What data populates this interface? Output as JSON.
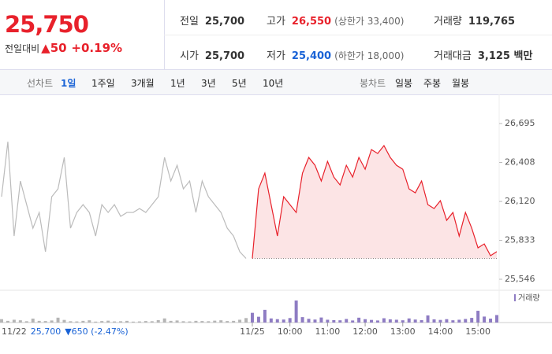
{
  "header": {
    "price": "25,750",
    "change_label": "전일대비",
    "change": "▲50",
    "change_pct": "+0.19%",
    "stats": [
      {
        "label": "전일",
        "value": "25,700"
      },
      {
        "label": "고가",
        "value": "26,550",
        "note": "(상한가 33,400)"
      },
      {
        "label": "거래량",
        "value": "119,765"
      },
      {
        "label": "시가",
        "value": "25,700"
      },
      {
        "label": "저가",
        "value": "25,400",
        "note": "(하한가 18,000)"
      },
      {
        "label": "거래대금",
        "value": "3,125 백만"
      }
    ]
  },
  "tabs": {
    "line_label": "선차트",
    "line": [
      "1일",
      "1주일",
      "3개월",
      "1년",
      "3년",
      "5년",
      "10년"
    ],
    "candle_label": "봉차트",
    "candle": [
      "일봉",
      "주봉",
      "월봉"
    ]
  },
  "prev_info": {
    "date": "11/22",
    "price": "25,700",
    "change": "▼650 (-2.47%)"
  },
  "chart_data": {
    "type": "line",
    "x": [
      0,
      1,
      2,
      3,
      4,
      5,
      6,
      7,
      8,
      9,
      10,
      11,
      12,
      13,
      14,
      15,
      16,
      17,
      18,
      19,
      20,
      21,
      22,
      23,
      24,
      25,
      26,
      27,
      28,
      29,
      30,
      31,
      32,
      33,
      34,
      35,
      36,
      37,
      38,
      39,
      40,
      41,
      42,
      43,
      44,
      45,
      46,
      47,
      48,
      49,
      50,
      51,
      52,
      53,
      54,
      55,
      56,
      57,
      58,
      59,
      60,
      61,
      62,
      63,
      64,
      65,
      66,
      67,
      68,
      69,
      70,
      71,
      72,
      73,
      74,
      75,
      76,
      77,
      78,
      79
    ],
    "xlim": [
      0,
      79
    ],
    "xticks": [
      {
        "value": 40,
        "label": "11/25"
      },
      {
        "value": 46,
        "label": "10:00"
      },
      {
        "value": 52,
        "label": "11:00"
      },
      {
        "value": 58,
        "label": "12:00"
      },
      {
        "value": 64,
        "label": "13:00"
      },
      {
        "value": 70,
        "label": "14:00"
      },
      {
        "value": 76,
        "label": "15:00"
      }
    ],
    "ylim": [
      25488,
      26881
    ],
    "yticks": [
      {
        "value": 25546,
        "label": "25,546"
      },
      {
        "value": 25833,
        "label": "25,833"
      },
      {
        "value": 26120,
        "label": "26,120"
      },
      {
        "value": 26408,
        "label": "26,408"
      },
      {
        "value": 26695,
        "label": "26,695"
      }
    ],
    "reference_line": 25700,
    "series": [
      {
        "color": "#bbbbbb",
        "values": [
          26155,
          26561,
          25865,
          26271,
          26097,
          25923,
          26039,
          25749,
          26155,
          26213,
          26445,
          25923,
          26039,
          26097,
          26039,
          25865,
          26097,
          26039,
          26097,
          26010,
          26039,
          26039,
          26068,
          26039,
          26097,
          26155,
          26445,
          26271,
          26387,
          26213,
          26271,
          26039,
          26271,
          26155,
          26097,
          26039,
          25923,
          25865,
          25749,
          25700,
          null,
          null,
          null,
          null,
          null,
          null,
          null,
          null,
          null,
          null,
          null,
          null,
          null,
          null,
          null,
          null,
          null,
          null,
          null,
          null,
          null,
          null,
          null,
          null,
          null,
          null,
          null,
          null,
          null,
          null,
          null,
          null,
          null,
          null,
          null,
          null,
          null,
          null,
          null,
          null
        ]
      },
      {
        "color": "#e8212b",
        "values": [
          null,
          null,
          null,
          null,
          null,
          null,
          null,
          null,
          null,
          null,
          null,
          null,
          null,
          null,
          null,
          null,
          null,
          null,
          null,
          null,
          null,
          null,
          null,
          null,
          null,
          null,
          null,
          null,
          null,
          null,
          null,
          null,
          null,
          null,
          null,
          null,
          null,
          null,
          null,
          null,
          25700,
          26213,
          26329,
          26097,
          25865,
          26155,
          26097,
          26039,
          26329,
          26445,
          26387,
          26271,
          26416,
          26300,
          26242,
          26387,
          26300,
          26445,
          26358,
          26503,
          26474,
          26532,
          26445,
          26387,
          26358,
          26213,
          26184,
          26271,
          26097,
          26068,
          26126,
          25981,
          26039,
          25865,
          26039,
          25923,
          25778,
          25807,
          25720,
          25750
        ]
      }
    ],
    "volume": {
      "name": "거래량",
      "color": "#8e7cc3",
      "values": [
        1800,
        900,
        1500,
        1200,
        700,
        2100,
        900,
        800,
        1100,
        2600,
        1400,
        700,
        600,
        900,
        1200,
        500,
        800,
        1000,
        600,
        700,
        900,
        500,
        600,
        800,
        700,
        1300,
        2200,
        900,
        1100,
        700,
        600,
        900,
        800,
        700,
        1000,
        1200,
        800,
        900,
        1500,
        2400,
        5200,
        3100,
        6800,
        2200,
        1800,
        1600,
        2400,
        11800,
        2900,
        2000,
        1600,
        2700,
        1500,
        1300,
        1200,
        1900,
        1100,
        2600,
        1800,
        1400,
        1100,
        2300,
        1700,
        1500,
        1200,
        2200,
        1600,
        1300,
        3800,
        1700,
        1400,
        1800,
        1200,
        1500,
        1900,
        2500,
        6300,
        3200,
        2100,
        4000
      ]
    }
  }
}
